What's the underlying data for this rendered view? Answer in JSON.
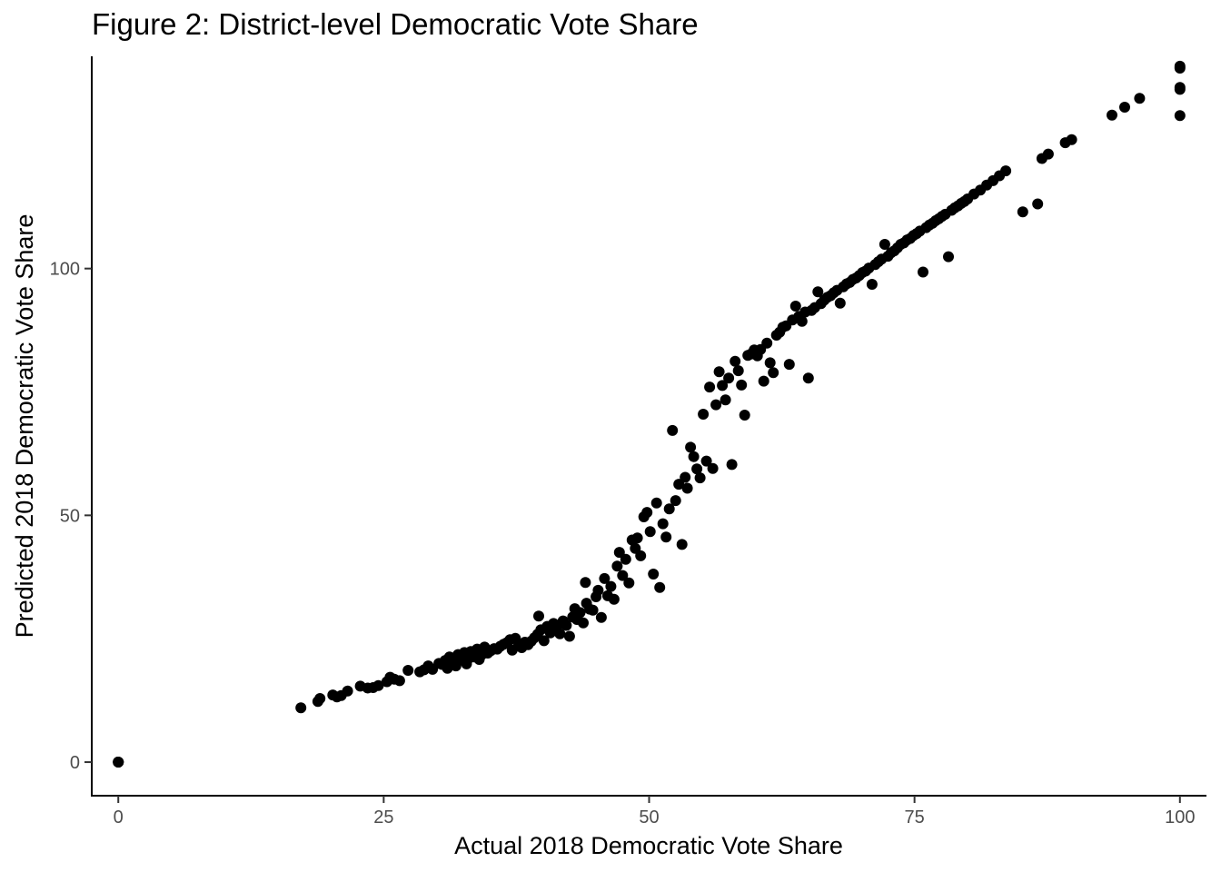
{
  "chart_data": {
    "type": "scatter",
    "title": "Figure 2: District-level Democratic Vote Share",
    "xlabel": "Actual 2018 Democratic Vote Share",
    "ylabel": "Predicted 2018 Democratic Vote Share",
    "xlim": [
      -2.5,
      102.5
    ],
    "ylim": [
      -6.8,
      143
    ],
    "x_ticks": [
      0,
      25,
      50,
      75,
      100
    ],
    "y_ticks": [
      0,
      50,
      100
    ],
    "grid": false,
    "legend": "none",
    "point_color": "#000000",
    "points": [
      [
        0,
        0
      ],
      [
        0,
        0
      ],
      [
        0,
        0
      ],
      [
        17.2,
        11
      ],
      [
        18.8,
        12.3
      ],
      [
        19,
        12.9
      ],
      [
        20.2,
        13.6
      ],
      [
        20.6,
        13.2
      ],
      [
        21,
        13.5
      ],
      [
        21.6,
        14.4
      ],
      [
        22.8,
        15.4
      ],
      [
        23.5,
        15
      ],
      [
        24,
        15.1
      ],
      [
        24.5,
        15.5
      ],
      [
        25.3,
        16.3
      ],
      [
        25.6,
        17.2
      ],
      [
        26,
        16.8
      ],
      [
        26.5,
        16.5
      ],
      [
        27.3,
        18.6
      ],
      [
        28.4,
        18.3
      ],
      [
        28.8,
        18.7
      ],
      [
        29.2,
        19.5
      ],
      [
        29.6,
        18.8
      ],
      [
        30.2,
        20
      ],
      [
        30.5,
        19.8
      ],
      [
        30.8,
        20.6
      ],
      [
        31,
        19
      ],
      [
        31.2,
        21.3
      ],
      [
        31.5,
        20.2
      ],
      [
        31.8,
        19.5
      ],
      [
        32,
        21.8
      ],
      [
        32.3,
        20.7
      ],
      [
        32.6,
        22.2
      ],
      [
        32.8,
        19.9
      ],
      [
        33,
        21
      ],
      [
        33.2,
        22.4
      ],
      [
        33.5,
        21.3
      ],
      [
        33.8,
        22.9
      ],
      [
        34,
        20.8
      ],
      [
        34.2,
        21.7
      ],
      [
        34.5,
        23.3
      ],
      [
        34.8,
        22.1
      ],
      [
        35.1,
        22.6
      ],
      [
        35.4,
        23
      ],
      [
        35.7,
        22.9
      ],
      [
        36,
        23.5
      ],
      [
        36.3,
        23.9
      ],
      [
        36.6,
        24.2
      ],
      [
        36.9,
        24.8
      ],
      [
        37.1,
        22.7
      ],
      [
        37.4,
        25.1
      ],
      [
        37.7,
        23.6
      ],
      [
        38,
        23.2
      ],
      [
        38.3,
        24.3
      ],
      [
        38.6,
        23.8
      ],
      [
        38.9,
        24.5
      ],
      [
        39.2,
        25.2
      ],
      [
        39.5,
        25.9
      ],
      [
        39.6,
        29.6
      ],
      [
        39.8,
        26.8
      ],
      [
        40.1,
        24.6
      ],
      [
        40.4,
        27.5
      ],
      [
        40.7,
        26.2
      ],
      [
        41,
        28.1
      ],
      [
        41.3,
        27.3
      ],
      [
        41.6,
        26
      ],
      [
        41.9,
        28.6
      ],
      [
        42.2,
        27.7
      ],
      [
        42.5,
        25.5
      ],
      [
        42.8,
        29.4
      ],
      [
        43,
        31.1
      ],
      [
        43.2,
        28.9
      ],
      [
        43.5,
        30.3
      ],
      [
        43.8,
        28.2
      ],
      [
        44,
        36.4
      ],
      [
        44.1,
        32.2
      ],
      [
        44.4,
        31
      ],
      [
        44.7,
        30.8
      ],
      [
        45,
        33.5
      ],
      [
        45.2,
        34.8
      ],
      [
        45.5,
        29.3
      ],
      [
        45.8,
        37.2
      ],
      [
        46.1,
        33.7
      ],
      [
        46.4,
        35.6
      ],
      [
        46.7,
        33
      ],
      [
        47,
        39.7
      ],
      [
        47.2,
        42.5
      ],
      [
        47.5,
        37.8
      ],
      [
        47.8,
        41.1
      ],
      [
        48.1,
        36.3
      ],
      [
        48.4,
        45
      ],
      [
        48.7,
        43.3
      ],
      [
        48.9,
        45.4
      ],
      [
        49.2,
        41.8
      ],
      [
        49.5,
        49.7
      ],
      [
        49.8,
        50.6
      ],
      [
        50.1,
        46.7
      ],
      [
        50.4,
        38.1
      ],
      [
        50.7,
        52.5
      ],
      [
        51,
        35.4
      ],
      [
        51.3,
        48.3
      ],
      [
        51.6,
        45.6
      ],
      [
        51.9,
        51.3
      ],
      [
        52.2,
        67.2
      ],
      [
        52.5,
        53
      ],
      [
        52.8,
        56.3
      ],
      [
        53.1,
        44.1
      ],
      [
        53.4,
        57.7
      ],
      [
        53.6,
        55.5
      ],
      [
        53.9,
        63.8
      ],
      [
        54.2,
        61.9
      ],
      [
        54.5,
        59.4
      ],
      [
        54.8,
        57.6
      ],
      [
        55.1,
        70.5
      ],
      [
        55.4,
        61
      ],
      [
        55.7,
        76
      ],
      [
        56,
        59.5
      ],
      [
        56.3,
        72.4
      ],
      [
        56.6,
        79.1
      ],
      [
        56.9,
        76.3
      ],
      [
        57.2,
        73.4
      ],
      [
        57.5,
        77.8
      ],
      [
        57.8,
        60.3
      ],
      [
        58.1,
        81.2
      ],
      [
        58.4,
        79.3
      ],
      [
        58.7,
        76.4
      ],
      [
        59,
        70.3
      ],
      [
        59.3,
        82.4
      ],
      [
        59.6,
        82.7
      ],
      [
        59.9,
        83.5
      ],
      [
        60.2,
        82.3
      ],
      [
        60.5,
        83.6
      ],
      [
        60.8,
        77.2
      ],
      [
        61.1,
        84.9
      ],
      [
        61.4,
        80.9
      ],
      [
        61.7,
        78.9
      ],
      [
        62,
        86.5
      ],
      [
        62.3,
        87.1
      ],
      [
        62.6,
        88.1
      ],
      [
        62.9,
        88.4
      ],
      [
        63.2,
        80.6
      ],
      [
        63.5,
        89.6
      ],
      [
        63.8,
        92.4
      ],
      [
        64.1,
        90.3
      ],
      [
        64.4,
        89.3
      ],
      [
        64.7,
        91.2
      ],
      [
        65,
        77.8
      ],
      [
        65.3,
        91.5
      ],
      [
        65.6,
        92.1
      ],
      [
        65.9,
        95.3
      ],
      [
        66.2,
        92.9
      ],
      [
        66.5,
        93.6
      ],
      [
        66.8,
        94.2
      ],
      [
        67.1,
        94.5
      ],
      [
        67.4,
        95.1
      ],
      [
        67.7,
        95.6
      ],
      [
        68,
        93
      ],
      [
        68.3,
        96.3
      ],
      [
        68.6,
        96.9
      ],
      [
        68.9,
        97.2
      ],
      [
        69.2,
        97.8
      ],
      [
        69.5,
        98.1
      ],
      [
        69.8,
        98.6
      ],
      [
        70.1,
        99.2
      ],
      [
        70.4,
        99.5
      ],
      [
        70.7,
        100.1
      ],
      [
        71,
        96.8
      ],
      [
        71.3,
        100.8
      ],
      [
        71.6,
        101.4
      ],
      [
        71.9,
        101.9
      ],
      [
        72.2,
        104.9
      ],
      [
        72.5,
        102.5
      ],
      [
        72.8,
        103.2
      ],
      [
        73.1,
        103.6
      ],
      [
        73.4,
        104.2
      ],
      [
        73.7,
        104.9
      ],
      [
        74,
        105.2
      ],
      [
        74.3,
        105.8
      ],
      [
        74.6,
        106.1
      ],
      [
        74.9,
        106.7
      ],
      [
        75.2,
        107.1
      ],
      [
        75.5,
        107.6
      ],
      [
        75.8,
        99.3
      ],
      [
        76.1,
        108.3
      ],
      [
        76.4,
        108.8
      ],
      [
        76.7,
        109.2
      ],
      [
        77,
        109.7
      ],
      [
        77.3,
        110.1
      ],
      [
        77.6,
        110.6
      ],
      [
        77.9,
        111
      ],
      [
        78.2,
        102.4
      ],
      [
        78.5,
        111.8
      ],
      [
        78.8,
        112.3
      ],
      [
        79.1,
        112.7
      ],
      [
        79.4,
        113.2
      ],
      [
        79.7,
        113.6
      ],
      [
        80,
        114.1
      ],
      [
        80.6,
        115.1
      ],
      [
        81.2,
        115.9
      ],
      [
        81.8,
        116.9
      ],
      [
        82.4,
        117.8
      ],
      [
        83,
        118.8
      ],
      [
        83.6,
        119.8
      ],
      [
        85.2,
        111.5
      ],
      [
        86.6,
        113.1
      ],
      [
        87,
        122.3
      ],
      [
        87.6,
        123.2
      ],
      [
        89.2,
        125.5
      ],
      [
        89.8,
        126.1
      ],
      [
        93.6,
        131.1
      ],
      [
        94.8,
        132.7
      ],
      [
        96.2,
        134.5
      ],
      [
        100,
        141
      ],
      [
        100,
        140.6
      ],
      [
        100,
        136.7
      ],
      [
        100,
        136.3
      ],
      [
        100,
        131
      ]
    ]
  }
}
